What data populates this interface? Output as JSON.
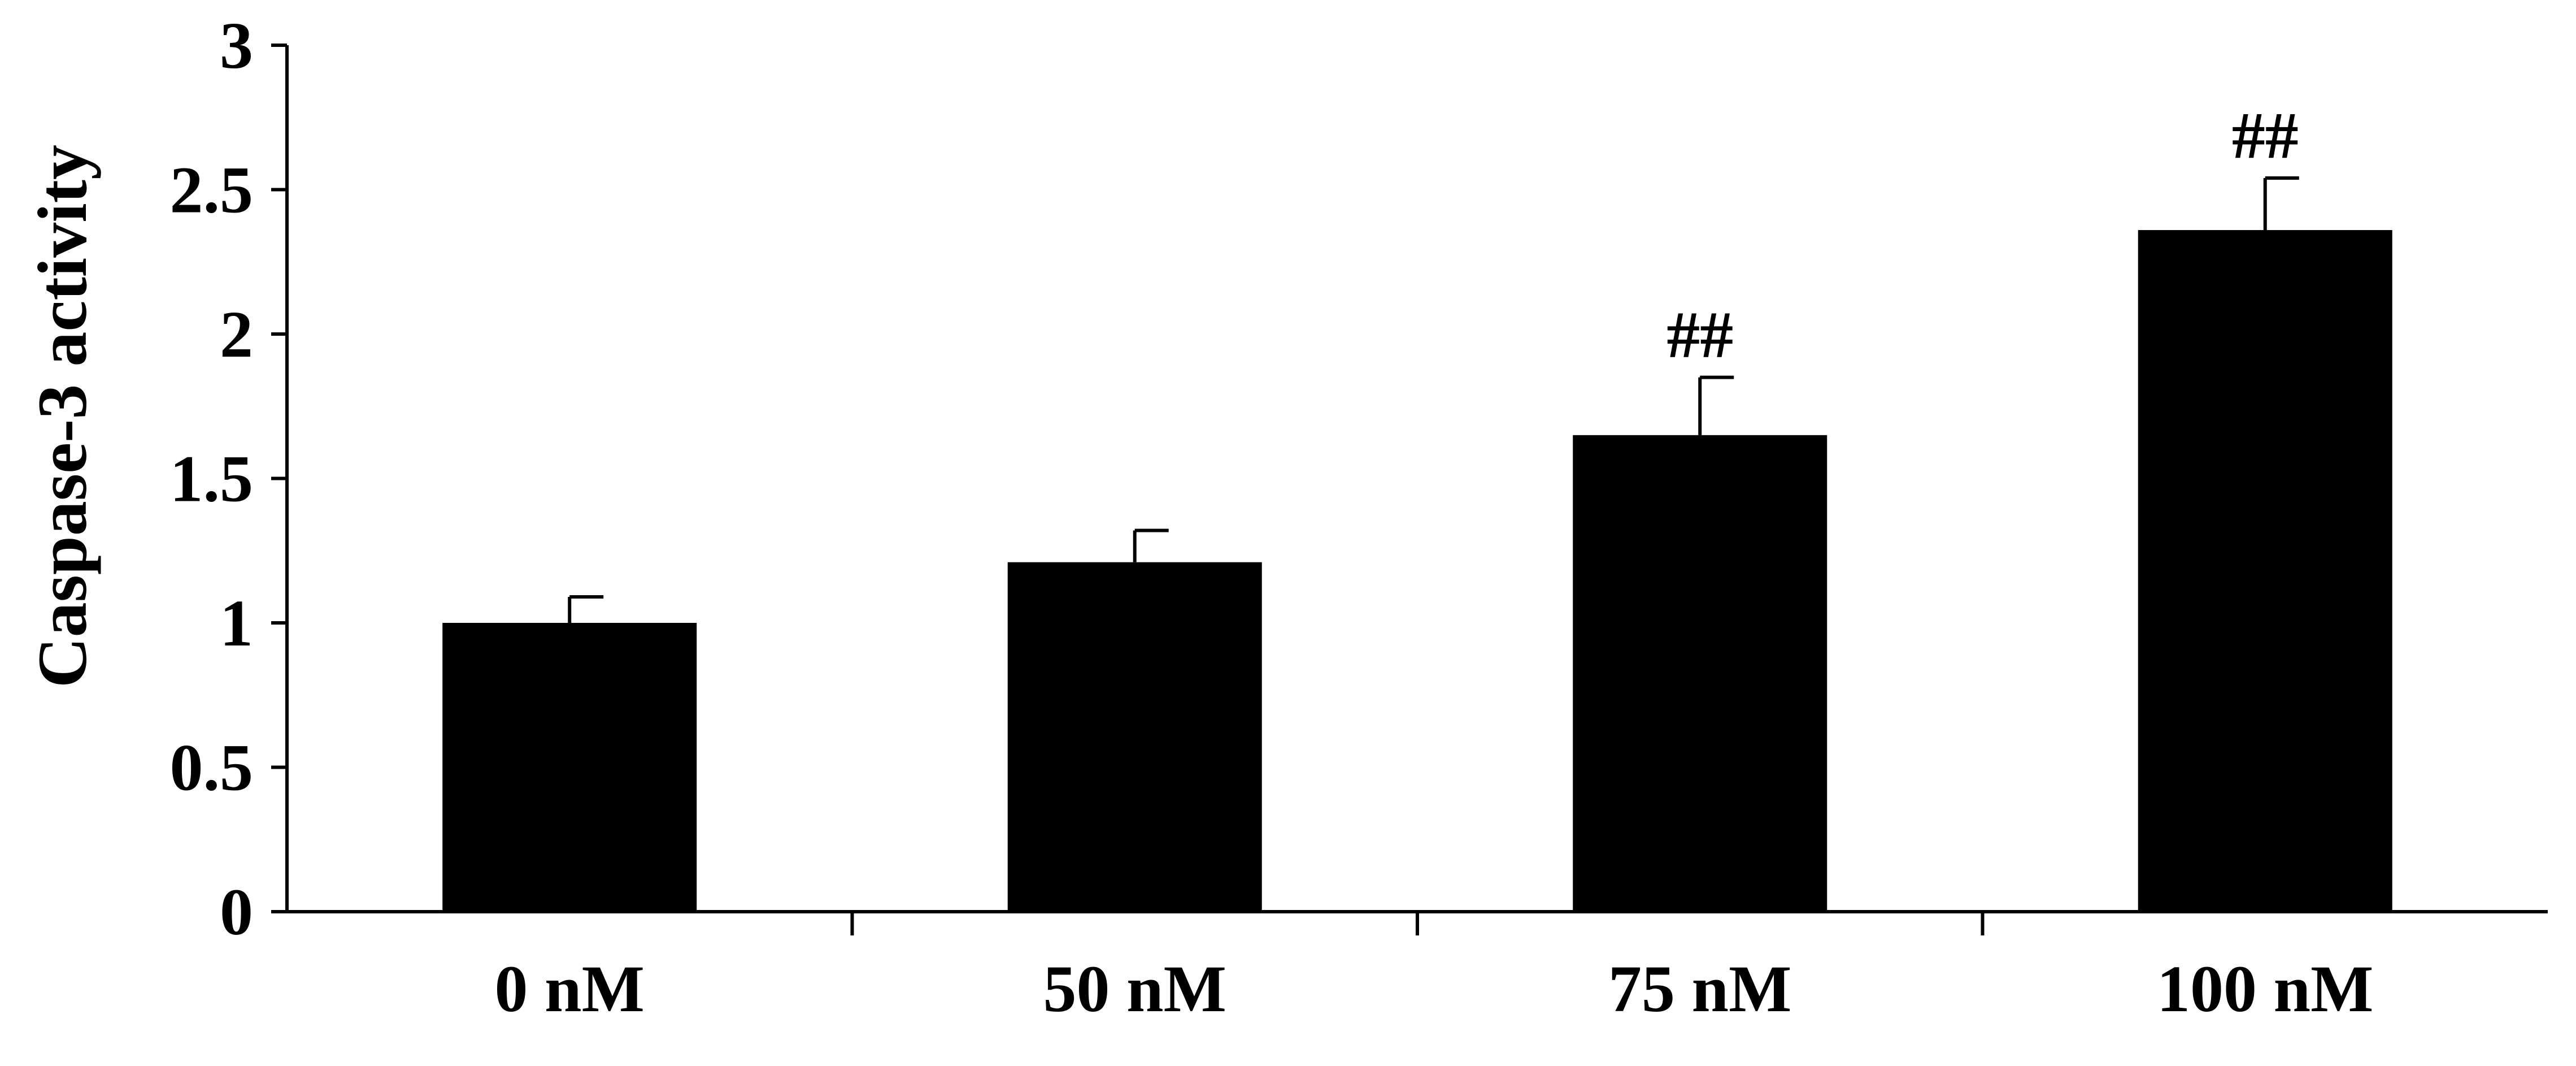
{
  "chart_data": {
    "type": "bar",
    "title": "",
    "xlabel": "",
    "ylabel": "Caspase-3 activity",
    "categories": [
      "0 nM",
      "50 nM",
      "75 nM",
      "100 nM"
    ],
    "values": [
      1.0,
      1.21,
      1.65,
      2.36
    ],
    "error_bars": [
      0.09,
      0.11,
      0.2,
      0.18
    ],
    "annotations": [
      "",
      "",
      "##",
      "##"
    ],
    "ylim": [
      0,
      3
    ],
    "yticks": [
      0,
      0.5,
      1,
      1.5,
      2,
      2.5,
      3
    ],
    "ytick_labels": [
      "0",
      "0.5",
      "1",
      "1.5",
      "2",
      "2.5",
      "3"
    ],
    "grid": false,
    "bar_color": "#000000"
  }
}
